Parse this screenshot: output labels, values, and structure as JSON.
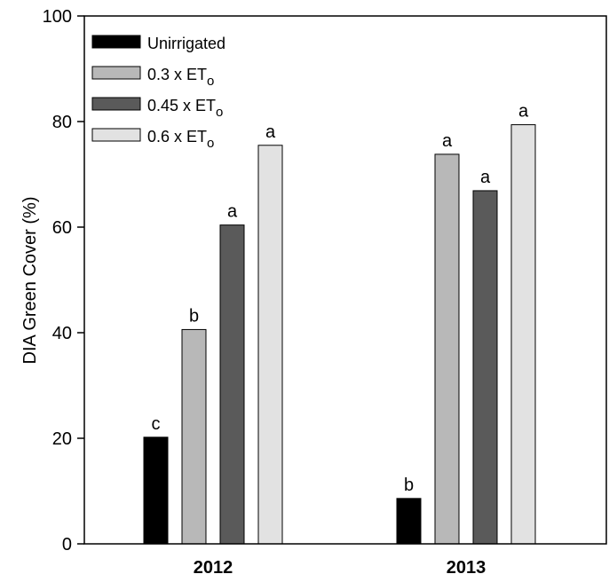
{
  "chart_data": {
    "type": "bar",
    "title": "",
    "xlabel": "",
    "ylabel": "DIA Green Cover (%)",
    "ylim": [
      0,
      100
    ],
    "yticks": [
      0,
      20,
      40,
      60,
      80,
      100
    ],
    "grid": false,
    "legend_position": "top-left",
    "categories": [
      "2012",
      "2013"
    ],
    "series": [
      {
        "name": "Unirrigated",
        "legend_base": "Unirrigated",
        "legend_sub": "",
        "color": "#000000",
        "values": [
          20.2,
          8.6
        ],
        "letters": [
          "c",
          "b"
        ]
      },
      {
        "name": "0.3 x ETo",
        "legend_base": "0.3 x ET",
        "legend_sub": "o",
        "color": "#b8b8b8",
        "values": [
          40.6,
          73.8
        ],
        "letters": [
          "b",
          "a"
        ]
      },
      {
        "name": "0.45 x ETo",
        "legend_base": "0.45 x ET",
        "legend_sub": "o",
        "color": "#5a5a5a",
        "values": [
          60.4,
          66.9
        ],
        "letters": [
          "a",
          "a"
        ]
      },
      {
        "name": "0.6 x ETo",
        "legend_base": "0.6 x ET",
        "legend_sub": "o",
        "color": "#e2e2e2",
        "values": [
          75.5,
          79.4
        ],
        "letters": [
          "a",
          "a"
        ]
      }
    ]
  }
}
